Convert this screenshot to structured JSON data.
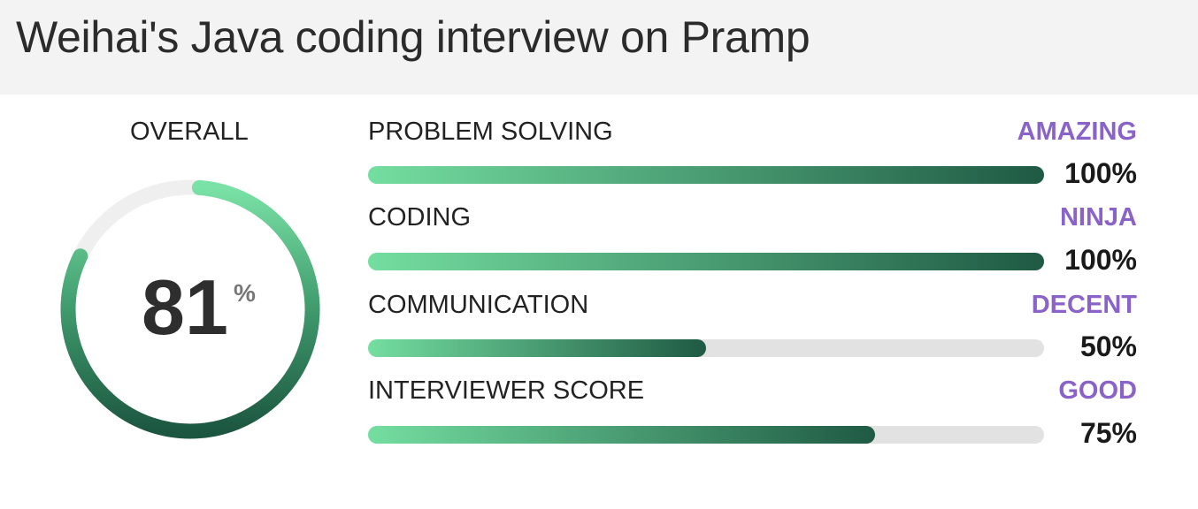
{
  "page_title": "Weihai's Java coding interview on Pramp",
  "overall": {
    "label": "OVERALL",
    "score": "81",
    "unit": "%",
    "fraction": 0.81
  },
  "metrics": [
    {
      "name": "PROBLEM SOLVING",
      "rating": "AMAZING",
      "percent_text": "100%",
      "fraction": 1.0
    },
    {
      "name": "CODING",
      "rating": "NINJA",
      "percent_text": "100%",
      "fraction": 1.0
    },
    {
      "name": "COMMUNICATION",
      "rating": "DECENT",
      "percent_text": "50%",
      "fraction": 0.5
    },
    {
      "name": "INTERVIEWER SCORE",
      "rating": "GOOD",
      "percent_text": "75%",
      "fraction": 0.75
    }
  ],
  "colors": {
    "header_bg": "#f3f3f3",
    "rating": "#8a63c9",
    "bar_start": "#74dea0",
    "bar_end": "#1f5a44",
    "track": "#e2e2e2"
  }
}
